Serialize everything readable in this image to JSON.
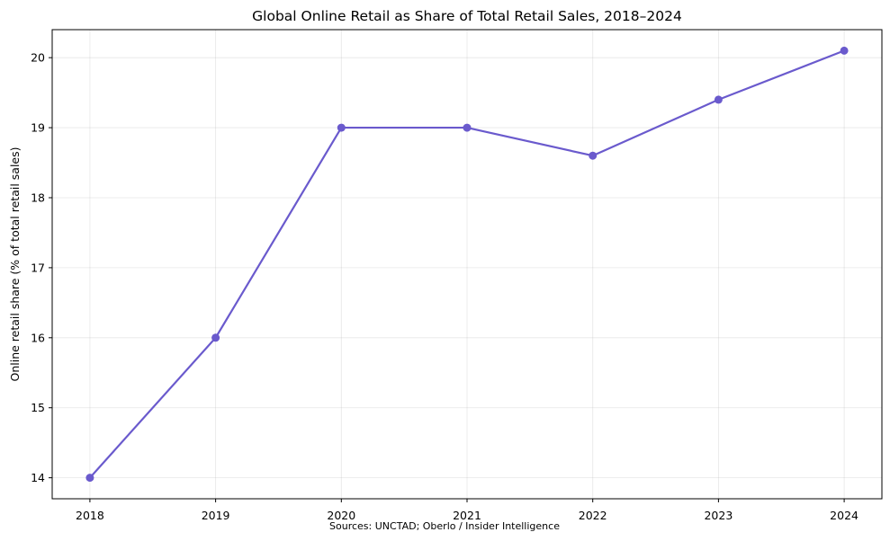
{
  "chart_data": {
    "type": "line",
    "title": "Global Online Retail as Share of Total Retail Sales, 2018–2024",
    "xlabel": "",
    "ylabel": "Online retail share (% of total retail sales)",
    "x": [
      2018,
      2019,
      2020,
      2021,
      2022,
      2023,
      2024
    ],
    "series": [
      {
        "values": [
          14.0,
          16.0,
          19.0,
          19.0,
          18.6,
          19.4,
          20.1
        ],
        "color": "#6a5acd"
      }
    ],
    "yticks": [
      14,
      15,
      16,
      17,
      18,
      19,
      20
    ],
    "ylim": [
      13.7,
      20.4
    ],
    "xlim": [
      2017.7,
      2024.3
    ],
    "grid": true,
    "legend": "none",
    "source": "Sources: UNCTAD; Oberlo / Insider Intelligence"
  }
}
